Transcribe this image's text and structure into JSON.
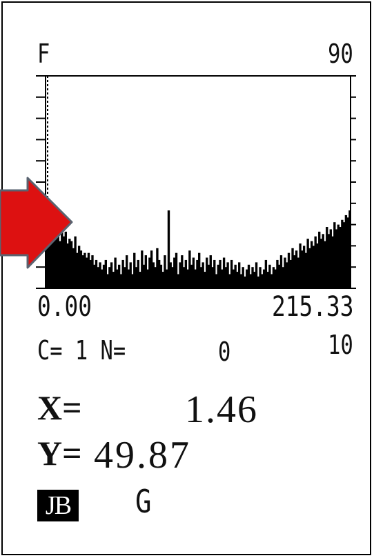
{
  "chart_data": {
    "type": "bar",
    "x_min_label": "0.00",
    "x_max_label": "215.33",
    "xlim": [
      0.0,
      215.33
    ],
    "y_label": "F",
    "y_max_label": "90",
    "ylim": [
      0,
      90
    ],
    "bins": 160,
    "cursor_x": 1.46,
    "values": [
      24,
      25,
      24,
      26,
      25,
      23,
      24,
      20,
      26,
      22,
      24,
      19,
      21,
      20,
      17,
      22,
      15,
      18,
      16,
      14,
      15,
      13,
      15,
      12,
      14,
      10,
      12,
      9,
      11,
      8,
      10,
      12,
      6,
      9,
      11,
      7,
      13,
      8,
      10,
      6,
      12,
      9,
      14,
      8,
      11,
      6,
      15,
      9,
      12,
      7,
      16,
      10,
      14,
      8,
      13,
      16,
      11,
      9,
      17,
      12,
      10,
      7,
      14,
      8,
      33,
      11,
      9,
      13,
      15,
      6,
      11,
      14,
      9,
      12,
      8,
      16,
      10,
      13,
      8,
      12,
      15,
      9,
      11,
      7,
      13,
      10,
      14,
      9,
      12,
      6,
      10,
      12,
      8,
      13,
      9,
      11,
      6,
      12,
      8,
      10,
      7,
      11,
      6,
      9,
      5,
      8,
      10,
      6,
      9,
      7,
      11,
      5,
      9,
      6,
      8,
      12,
      7,
      10,
      6,
      9,
      8,
      12,
      10,
      14,
      9,
      13,
      11,
      15,
      12,
      17,
      14,
      16,
      13,
      19,
      16,
      18,
      15,
      21,
      17,
      20,
      18,
      22,
      19,
      24,
      21,
      23,
      20,
      26,
      23,
      25,
      22,
      28,
      25,
      27,
      26,
      29,
      28,
      31,
      30,
      33
    ]
  },
  "readout": {
    "c_line": "C= 1  N=",
    "n_value": "0",
    "bins_label": "10",
    "x_label": "X=",
    "x_value": "1.46",
    "y_label": "Y=",
    "y_value": "49.87"
  },
  "footer": {
    "badge": "JB",
    "g_label": "G"
  },
  "colors": {
    "bars": "#000000",
    "arrow_fill": "#dd1111",
    "arrow_highlight": "#ff5555",
    "arrow_outline": "#5a6370"
  }
}
